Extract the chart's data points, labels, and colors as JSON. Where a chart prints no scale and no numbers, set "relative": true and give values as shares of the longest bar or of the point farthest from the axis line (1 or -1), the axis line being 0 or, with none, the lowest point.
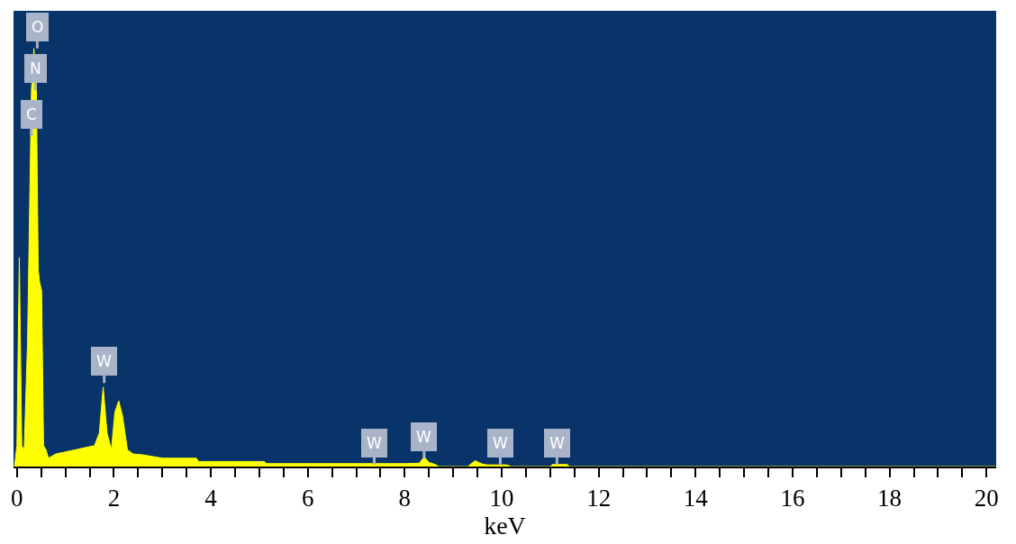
{
  "chart_data": {
    "type": "area",
    "relative": true,
    "xlabel": "keV",
    "x": [
      -0.05,
      0.0,
      0.05,
      0.1,
      0.15,
      0.22,
      0.3,
      0.35,
      0.4,
      0.44,
      0.47,
      0.51,
      0.55,
      0.6,
      0.65,
      0.8,
      1.0,
      1.2,
      1.4,
      1.6,
      1.7,
      1.78,
      1.86,
      1.95,
      2.02,
      2.1,
      2.18,
      2.28,
      2.4,
      2.6,
      3.0,
      3.7,
      3.75,
      5.1,
      5.15,
      8.0,
      8.3,
      8.4,
      8.5,
      8.65,
      8.7,
      9.3,
      9.45,
      9.6,
      9.7,
      10.1,
      10.2,
      11.0,
      11.05,
      11.35,
      11.4,
      20.2
    ],
    "series": [
      {
        "color": "#ffff00",
        "values": [
          0.0,
          0.05,
          0.5,
          0.05,
          0.04,
          0.3,
          0.9,
          1.0,
          0.92,
          0.47,
          0.44,
          0.42,
          0.05,
          0.04,
          0.02,
          0.03,
          0.035,
          0.04,
          0.045,
          0.05,
          0.08,
          0.19,
          0.08,
          0.04,
          0.13,
          0.157,
          0.12,
          0.04,
          0.03,
          0.028,
          0.02,
          0.02,
          0.012,
          0.012,
          0.007,
          0.007,
          0.008,
          0.023,
          0.01,
          0.004,
          0.0,
          0.0,
          0.014,
          0.006,
          0.004,
          0.004,
          0.0,
          0.0,
          0.005,
          0.005,
          0.0,
          0.0
        ]
      }
    ],
    "xlim": [
      -0.07,
      20.2
    ],
    "xticks": [
      0,
      {
        "value": 0.5,
        "label": null
      },
      {
        "value": 1,
        "label": null
      },
      {
        "value": 1.5,
        "label": null
      },
      2,
      {
        "value": 2.5,
        "label": null
      },
      {
        "value": 3,
        "label": null
      },
      {
        "value": 3.5,
        "label": null
      },
      4,
      {
        "value": 4.5,
        "label": null
      },
      {
        "value": 5,
        "label": null
      },
      {
        "value": 5.5,
        "label": null
      },
      6,
      {
        "value": 6.5,
        "label": null
      },
      {
        "value": 7,
        "label": null
      },
      {
        "value": 7.5,
        "label": null
      },
      8,
      {
        "value": 8.5,
        "label": null
      },
      {
        "value": 9,
        "label": null
      },
      {
        "value": 9.5,
        "label": null
      },
      10,
      {
        "value": 10.5,
        "label": null
      },
      {
        "value": 11,
        "label": null
      },
      {
        "value": 11.5,
        "label": null
      },
      12,
      {
        "value": 12.5,
        "label": null
      },
      {
        "value": 13,
        "label": null
      },
      {
        "value": 13.5,
        "label": null
      },
      14,
      {
        "value": 14.5,
        "label": null
      },
      {
        "value": 15,
        "label": null
      },
      {
        "value": 15.5,
        "label": null
      },
      16,
      {
        "value": 16.5,
        "label": null
      },
      {
        "value": 17,
        "label": null
      },
      {
        "value": 17.5,
        "label": null
      },
      18,
      {
        "value": 18.5,
        "label": null
      },
      {
        "value": 19,
        "label": null
      },
      {
        "value": 19.5,
        "label": null
      },
      20
    ],
    "grid": false,
    "legend": false,
    "tick_labels": "x",
    "annotations": [
      {
        "text": "O",
        "x": 0.42,
        "y": 1.0
      },
      {
        "text": "N",
        "x": 0.38,
        "y": 0.9
      },
      {
        "text": "C",
        "x": 0.3,
        "y": 0.79
      },
      {
        "text": "W",
        "x": 1.8,
        "y": 0.2
      },
      {
        "text": "W",
        "x": 7.37,
        "y": 0.005
      },
      {
        "text": "W",
        "x": 8.4,
        "y": 0.02
      },
      {
        "text": "W",
        "x": 9.97,
        "y": 0.005
      },
      {
        "text": "W",
        "x": 11.14,
        "y": 0.005
      }
    ]
  }
}
